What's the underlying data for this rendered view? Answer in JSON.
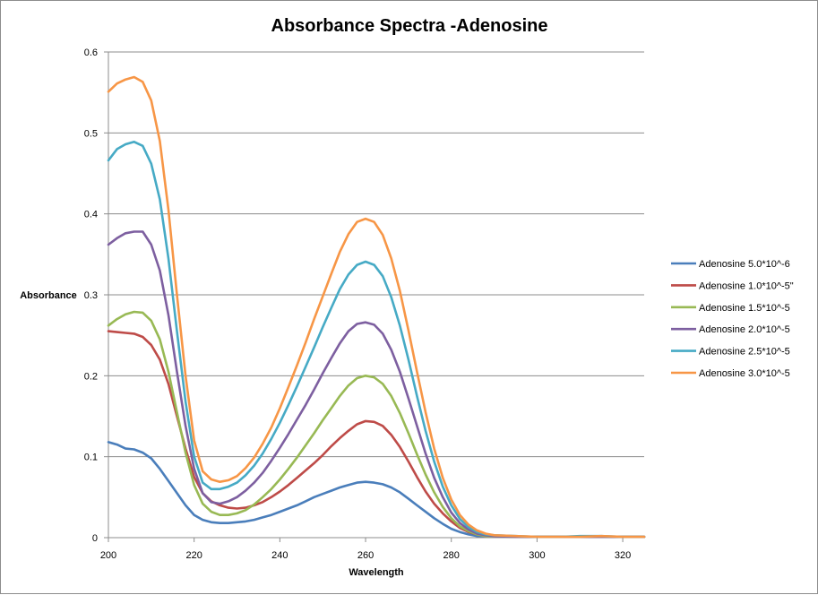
{
  "chart_data": {
    "type": "line",
    "title": "Absorbance Spectra -Adenosine",
    "xlabel": "Wavelength",
    "ylabel": "Absorbance",
    "xlim": [
      200,
      325
    ],
    "ylim": [
      0,
      0.6
    ],
    "x_ticks": [
      200,
      220,
      240,
      260,
      280,
      300,
      320
    ],
    "y_ticks": [
      0,
      0.1,
      0.2,
      0.3,
      0.4,
      0.5,
      0.6
    ],
    "grid": "horizontal",
    "legend_position": "right",
    "x": [
      200,
      202,
      204,
      206,
      208,
      210,
      212,
      214,
      216,
      218,
      220,
      222,
      224,
      226,
      228,
      230,
      232,
      234,
      236,
      238,
      240,
      242,
      244,
      246,
      248,
      250,
      252,
      254,
      256,
      258,
      260,
      262,
      264,
      266,
      268,
      270,
      272,
      274,
      276,
      278,
      280,
      282,
      284,
      286,
      288,
      290,
      295,
      300,
      305,
      310,
      315,
      320,
      325
    ],
    "series": [
      {
        "name": "Adenosine 5.0*10^-6",
        "color": "#4a7ebb",
        "values": [
          0.118,
          0.115,
          0.11,
          0.109,
          0.105,
          0.098,
          0.085,
          0.07,
          0.055,
          0.04,
          0.028,
          0.022,
          0.019,
          0.018,
          0.018,
          0.019,
          0.02,
          0.022,
          0.025,
          0.028,
          0.032,
          0.036,
          0.04,
          0.045,
          0.05,
          0.054,
          0.058,
          0.062,
          0.065,
          0.068,
          0.069,
          0.068,
          0.066,
          0.062,
          0.056,
          0.048,
          0.04,
          0.032,
          0.024,
          0.017,
          0.011,
          0.007,
          0.004,
          0.002,
          0.002,
          0.002,
          0.001,
          0.001,
          0.001,
          0.001,
          0.001,
          0.001,
          0.001
        ]
      },
      {
        "name": "Adenosine 1.0*10^-5\"",
        "color": "#be4b48",
        "values": [
          0.255,
          0.254,
          0.253,
          0.252,
          0.248,
          0.238,
          0.22,
          0.19,
          0.15,
          0.11,
          0.075,
          0.055,
          0.045,
          0.04,
          0.037,
          0.036,
          0.037,
          0.04,
          0.044,
          0.05,
          0.057,
          0.065,
          0.074,
          0.083,
          0.092,
          0.102,
          0.113,
          0.123,
          0.132,
          0.14,
          0.144,
          0.143,
          0.138,
          0.127,
          0.112,
          0.094,
          0.075,
          0.057,
          0.042,
          0.03,
          0.02,
          0.012,
          0.007,
          0.004,
          0.002,
          0.002,
          0.001,
          0.001,
          0.001,
          0.001,
          0.001,
          0.001,
          0.001
        ]
      },
      {
        "name": "Adenosine 1.5*10^-5",
        "color": "#98b954",
        "values": [
          0.262,
          0.27,
          0.276,
          0.279,
          0.278,
          0.268,
          0.245,
          0.205,
          0.155,
          0.105,
          0.065,
          0.042,
          0.032,
          0.028,
          0.028,
          0.03,
          0.034,
          0.041,
          0.05,
          0.06,
          0.072,
          0.085,
          0.099,
          0.114,
          0.129,
          0.145,
          0.16,
          0.175,
          0.188,
          0.197,
          0.2,
          0.198,
          0.19,
          0.175,
          0.154,
          0.129,
          0.103,
          0.078,
          0.056,
          0.038,
          0.024,
          0.014,
          0.008,
          0.004,
          0.002,
          0.002,
          0.001,
          0.001,
          0.001,
          0.001,
          0.001,
          0.001,
          0.001
        ]
      },
      {
        "name": "Adenosine 2.0*10^-5",
        "color": "#7d5fa0",
        "values": [
          0.362,
          0.37,
          0.376,
          0.378,
          0.378,
          0.362,
          0.33,
          0.275,
          0.205,
          0.138,
          0.085,
          0.055,
          0.044,
          0.042,
          0.045,
          0.05,
          0.058,
          0.068,
          0.08,
          0.095,
          0.111,
          0.128,
          0.146,
          0.164,
          0.183,
          0.203,
          0.222,
          0.24,
          0.255,
          0.264,
          0.266,
          0.263,
          0.252,
          0.232,
          0.205,
          0.172,
          0.138,
          0.104,
          0.074,
          0.05,
          0.031,
          0.018,
          0.01,
          0.005,
          0.003,
          0.002,
          0.001,
          0.001,
          0.001,
          0.001,
          0.001,
          0.001,
          0.001
        ]
      },
      {
        "name": "Adenosine 2.5*10^-5",
        "color": "#46aac5",
        "values": [
          0.466,
          0.48,
          0.486,
          0.489,
          0.484,
          0.462,
          0.418,
          0.345,
          0.255,
          0.168,
          0.1,
          0.068,
          0.06,
          0.06,
          0.063,
          0.068,
          0.077,
          0.089,
          0.104,
          0.122,
          0.142,
          0.164,
          0.187,
          0.211,
          0.235,
          0.26,
          0.284,
          0.307,
          0.325,
          0.337,
          0.341,
          0.337,
          0.323,
          0.297,
          0.262,
          0.22,
          0.175,
          0.132,
          0.094,
          0.063,
          0.04,
          0.023,
          0.013,
          0.007,
          0.004,
          0.003,
          0.002,
          0.001,
          0.001,
          0.002,
          0.002,
          0.001,
          0.001
        ]
      },
      {
        "name": "Adenosine 3.0*10^-5",
        "color": "#f79646",
        "values": [
          0.551,
          0.561,
          0.566,
          0.569,
          0.563,
          0.54,
          0.49,
          0.405,
          0.3,
          0.2,
          0.12,
          0.082,
          0.072,
          0.069,
          0.071,
          0.076,
          0.086,
          0.099,
          0.116,
          0.136,
          0.16,
          0.186,
          0.213,
          0.241,
          0.27,
          0.298,
          0.326,
          0.353,
          0.375,
          0.39,
          0.394,
          0.39,
          0.374,
          0.345,
          0.305,
          0.256,
          0.205,
          0.155,
          0.11,
          0.074,
          0.047,
          0.028,
          0.016,
          0.009,
          0.005,
          0.003,
          0.002,
          0.001,
          0.001,
          0.001,
          0.002,
          0.001,
          0.001
        ]
      }
    ]
  }
}
